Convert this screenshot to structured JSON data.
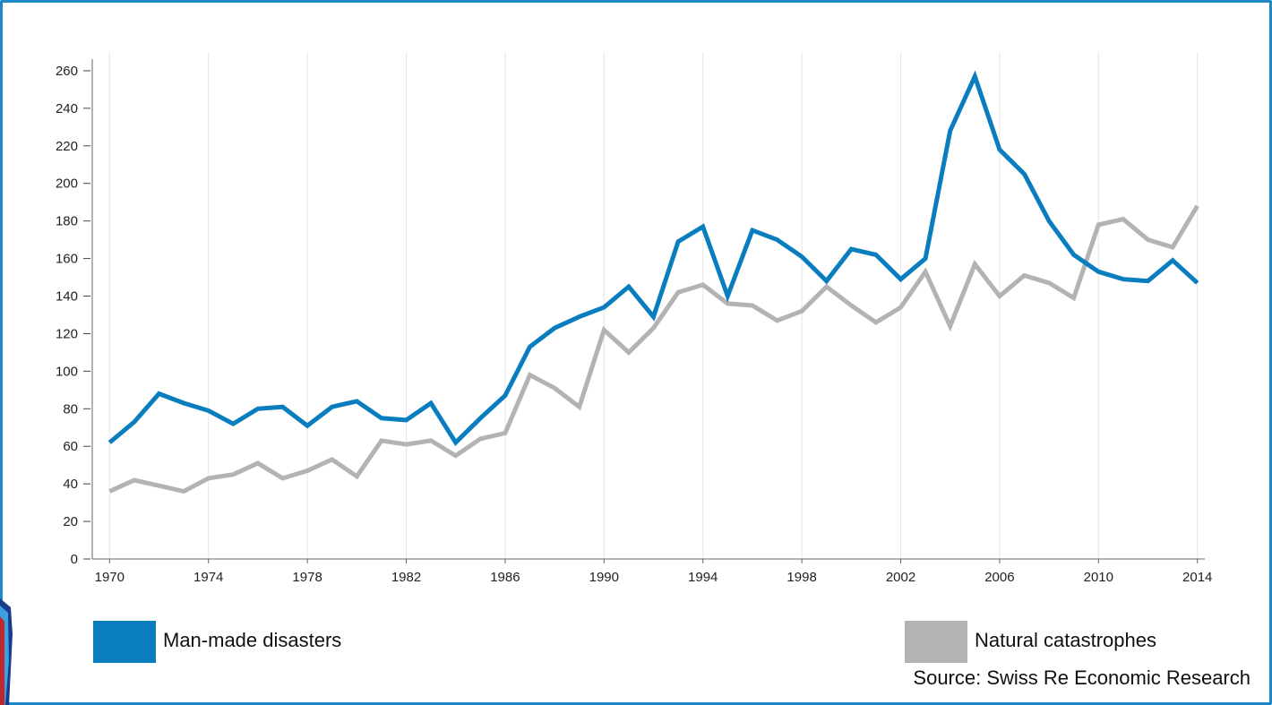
{
  "colors": {
    "man_made": "#0a7dbf",
    "natural": "#b3b3b3",
    "frame": "#1f86c8"
  },
  "chart_data": {
    "type": "line",
    "title": "",
    "xlabel": "",
    "ylabel": "",
    "x": [
      1970,
      1971,
      1972,
      1973,
      1974,
      1975,
      1976,
      1977,
      1978,
      1979,
      1980,
      1981,
      1982,
      1983,
      1984,
      1985,
      1986,
      1987,
      1988,
      1989,
      1990,
      1991,
      1992,
      1993,
      1994,
      1995,
      1996,
      1997,
      1998,
      1999,
      2000,
      2001,
      2002,
      2003,
      2004,
      2005,
      2006,
      2007,
      2008,
      2009,
      2010,
      2011,
      2012,
      2013,
      2014
    ],
    "xticks": [
      "1970",
      "1974",
      "1978",
      "1982",
      "1986",
      "1990",
      "1994",
      "1998",
      "2002",
      "2006",
      "2010",
      "2014"
    ],
    "yticks": [
      "0",
      "20",
      "40",
      "60",
      "80",
      "100",
      "120",
      "140",
      "160",
      "180",
      "200",
      "220",
      "240",
      "260"
    ],
    "xlim": [
      1969.3,
      2014.3
    ],
    "ylim": [
      0,
      270
    ],
    "grid": true,
    "legend_position": "bottom",
    "series": [
      {
        "name": "Man-made disasters",
        "color": "#0a7dbf",
        "values": [
          62,
          73,
          88,
          83,
          79,
          72,
          80,
          81,
          71,
          81,
          84,
          75,
          74,
          83,
          62,
          75,
          87,
          113,
          123,
          129,
          134,
          145,
          129,
          169,
          177,
          140,
          175,
          170,
          161,
          148,
          165,
          162,
          149,
          160,
          228,
          257,
          218,
          205,
          180,
          162,
          153,
          149,
          148,
          159,
          147
        ]
      },
      {
        "name": "Natural catastrophes",
        "color": "#b3b3b3",
        "values": [
          36,
          42,
          39,
          36,
          43,
          45,
          51,
          43,
          47,
          53,
          44,
          63,
          61,
          63,
          55,
          64,
          67,
          98,
          91,
          81,
          122,
          110,
          123,
          142,
          146,
          136,
          135,
          127,
          132,
          145,
          135,
          126,
          134,
          153,
          124,
          157,
          140,
          151,
          147,
          139,
          178,
          181,
          170,
          166,
          188
        ]
      }
    ]
  },
  "legend": {
    "man_made_label": "Man-made disasters",
    "natural_label": "Natural catastrophes"
  },
  "source": "Source: Swiss Re Economic Research"
}
